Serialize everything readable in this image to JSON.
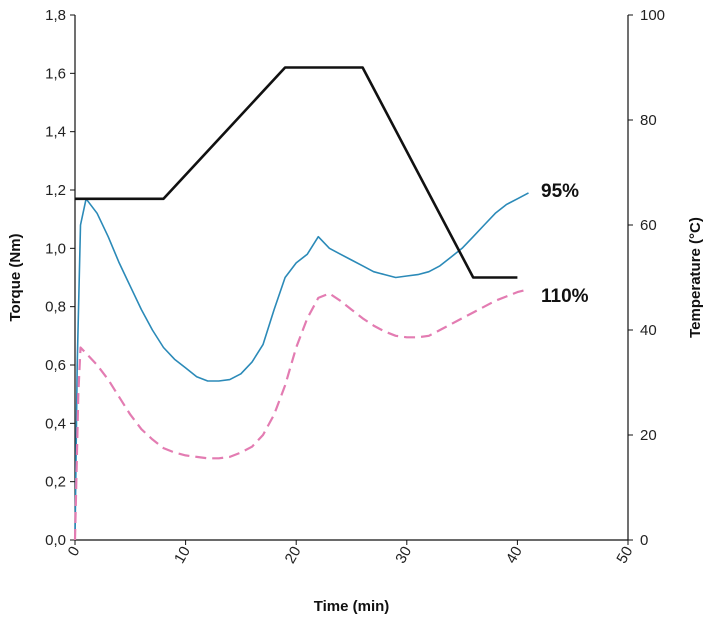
{
  "chart_data": {
    "type": "line",
    "xlabel": "Time (min)",
    "ylabel": "Torque (Nm)",
    "y2label": "Temperature (°C)",
    "xlim": [
      0,
      50
    ],
    "ylim": [
      0,
      1.8
    ],
    "y2lim": [
      0,
      100
    ],
    "x_ticks": [
      "0",
      "10",
      "20",
      "30",
      "40",
      "50"
    ],
    "y_ticks": [
      "0,0",
      "0,2",
      "0,4",
      "0,6",
      "0,8",
      "1,0",
      "1,2",
      "1,4",
      "1,6",
      "1,8"
    ],
    "y2_ticks": [
      "0",
      "20",
      "40",
      "60",
      "80",
      "100"
    ],
    "grid": false,
    "series": [
      {
        "name": "95%",
        "axis": "left",
        "color": "#2b8ab8",
        "style": "solid",
        "x": [
          0,
          0.2,
          0.5,
          1,
          2,
          3,
          4,
          5,
          6,
          7,
          8,
          9,
          10,
          11,
          12,
          13,
          14,
          15,
          16,
          17,
          18,
          19,
          20,
          21,
          22,
          23,
          24,
          25,
          26,
          27,
          28,
          29,
          30,
          31,
          32,
          33,
          34,
          35,
          36,
          37,
          38,
          39,
          40,
          41
        ],
        "y": [
          0.0,
          0.6,
          1.08,
          1.17,
          1.12,
          1.04,
          0.95,
          0.87,
          0.79,
          0.72,
          0.66,
          0.62,
          0.59,
          0.56,
          0.545,
          0.545,
          0.55,
          0.57,
          0.61,
          0.67,
          0.79,
          0.9,
          0.95,
          0.98,
          1.04,
          1.0,
          0.98,
          0.96,
          0.94,
          0.92,
          0.91,
          0.9,
          0.905,
          0.91,
          0.92,
          0.94,
          0.97,
          1.0,
          1.04,
          1.08,
          1.12,
          1.15,
          1.17,
          1.19
        ]
      },
      {
        "name": "110%",
        "axis": "left",
        "color": "#e37cb2",
        "style": "dashed",
        "x": [
          0,
          0.3,
          0.5,
          1,
          2,
          3,
          4,
          5,
          6,
          7,
          8,
          9,
          10,
          11,
          12,
          13,
          14,
          15,
          16,
          17,
          18,
          19,
          20,
          21,
          22,
          23,
          24,
          25,
          26,
          27,
          28,
          29,
          30,
          31,
          32,
          33,
          34,
          35,
          36,
          37,
          38,
          39,
          40,
          41
        ],
        "y": [
          0.0,
          0.5,
          0.66,
          0.64,
          0.6,
          0.55,
          0.49,
          0.43,
          0.38,
          0.345,
          0.315,
          0.3,
          0.29,
          0.285,
          0.28,
          0.28,
          0.285,
          0.3,
          0.32,
          0.36,
          0.43,
          0.53,
          0.66,
          0.76,
          0.83,
          0.845,
          0.82,
          0.79,
          0.76,
          0.735,
          0.715,
          0.7,
          0.695,
          0.695,
          0.7,
          0.72,
          0.74,
          0.76,
          0.78,
          0.8,
          0.82,
          0.835,
          0.85,
          0.86
        ]
      },
      {
        "name": "",
        "axis": "right",
        "color": "#111111",
        "style": "solid",
        "x": [
          0,
          8,
          19,
          26,
          36,
          40
        ],
        "y": [
          65,
          65,
          90,
          90,
          50,
          50
        ]
      }
    ],
    "labels": [
      "95%",
      "110%"
    ]
  }
}
